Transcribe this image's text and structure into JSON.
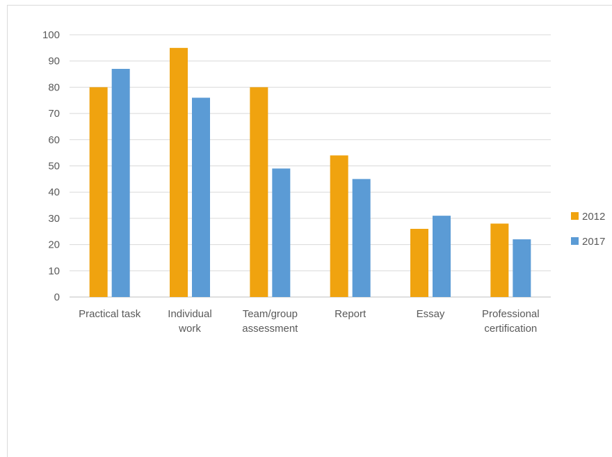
{
  "chart_data": {
    "type": "bar",
    "title": "",
    "xlabel": "",
    "ylabel": "",
    "categories": [
      [
        "Practical task"
      ],
      [
        "Individual",
        "work"
      ],
      [
        "Team/group",
        "assessment"
      ],
      [
        "Report"
      ],
      [
        "Essay"
      ],
      [
        "Professional",
        "certification"
      ]
    ],
    "series": [
      {
        "name": "2012",
        "color": "#f0a30f",
        "values": [
          80,
          95,
          80,
          54,
          26,
          28
        ]
      },
      {
        "name": "2017",
        "color": "#5b9bd5",
        "values": [
          87,
          76,
          49,
          45,
          31,
          22
        ]
      }
    ],
    "ylim": [
      0,
      100
    ],
    "yticks": [
      0,
      10,
      20,
      30,
      40,
      50,
      60,
      70,
      80,
      90,
      100
    ],
    "grid": true,
    "legend_position": "right",
    "gridline_color": "#d9d9d9",
    "axis_color": "#bfbfbf",
    "text_color": "#595959"
  }
}
